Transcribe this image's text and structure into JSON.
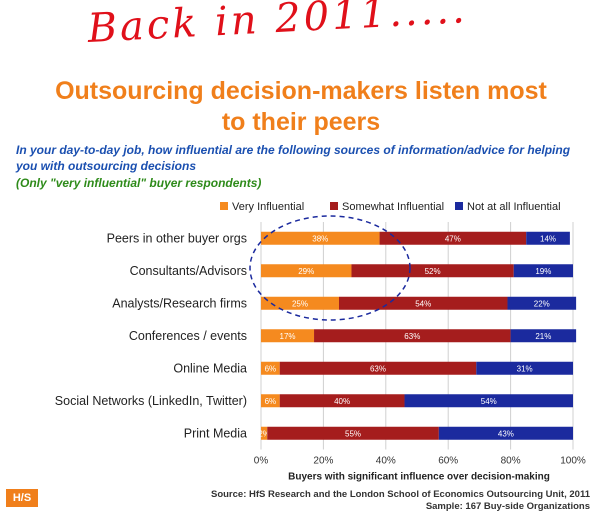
{
  "annotation": {
    "handwritten_text": "Back in 2011....."
  },
  "slide": {
    "title_line1": "Outsourcing decision-makers listen most",
    "title_line2": "to their peers",
    "question": "In your day-to-day job, how influential are the following sources of information/advice for helping you with outsourcing decisions",
    "subquestion": "(Only \"very influential\" buyer respondents)"
  },
  "footer": {
    "logo": "H/S",
    "source": "Source:  HfS Research and the London School of Economics Outsourcing Unit, 2011",
    "sample": "Sample: 167 Buy-side Organizations"
  },
  "chart_data": {
    "type": "bar",
    "orientation": "horizontal",
    "stacked": "percent",
    "categories": [
      "Peers in other buyer orgs",
      "Consultants/Advisors",
      "Analysts/Research firms",
      "Conferences / events",
      "Online Media",
      "Social Networks (LinkedIn, Twitter)",
      "Print Media"
    ],
    "series": [
      {
        "name": "Very Influential",
        "color": "#f58a1f",
        "values": [
          38,
          29,
          25,
          17,
          6,
          6,
          2
        ]
      },
      {
        "name": "Somewhat Influential",
        "color": "#a51d1d",
        "values": [
          47,
          52,
          54,
          63,
          63,
          40,
          55
        ]
      },
      {
        "name": "Not at all Influential",
        "color": "#1b2a9e",
        "values": [
          14,
          19,
          22,
          21,
          31,
          54,
          43
        ]
      }
    ],
    "xlim": [
      0,
      100
    ],
    "xticks": [
      "0%",
      "20%",
      "40%",
      "60%",
      "80%",
      "100%"
    ],
    "xlabel": "Buyers with significant influence over decision-making",
    "legend": "top-right",
    "highlight": "dashed ellipse around the top three categories' Very Influential bars"
  }
}
